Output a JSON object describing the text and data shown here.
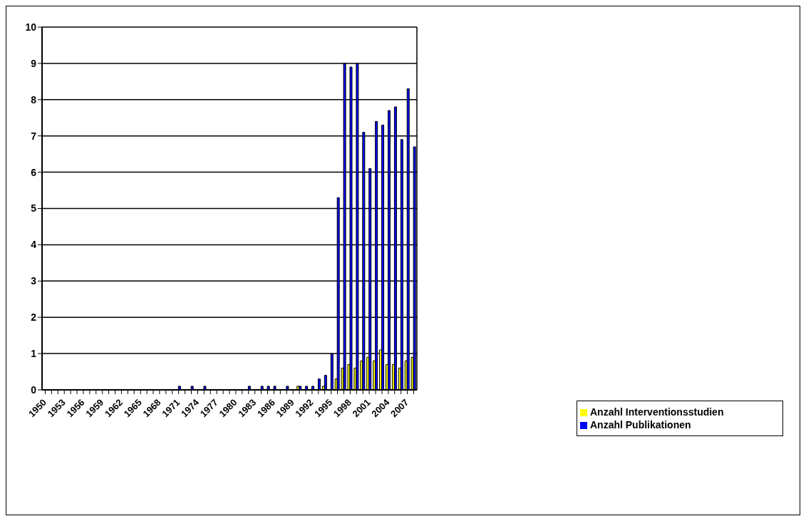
{
  "chart_data": {
    "type": "bar",
    "categories": [
      "1950",
      null,
      null,
      "1953",
      null,
      null,
      "1956",
      null,
      null,
      "1959",
      null,
      null,
      "1962",
      null,
      null,
      "1965",
      null,
      null,
      "1968",
      null,
      null,
      "1971",
      null,
      null,
      "1974",
      null,
      null,
      "1977",
      null,
      null,
      "1980",
      null,
      null,
      "1983",
      null,
      null,
      "1986",
      null,
      null,
      "1989",
      null,
      null,
      "1992",
      null,
      null,
      "1995",
      null,
      null,
      "1998",
      null,
      null,
      "2001",
      null,
      null,
      "2004",
      null,
      null,
      "2007",
      null
    ],
    "series": [
      {
        "name": "Anzahl Interventionsstudien",
        "color": "#ffff00",
        "values": [
          0,
          0,
          0,
          0,
          0,
          0,
          0,
          0,
          0,
          0,
          0,
          0,
          0,
          0,
          0,
          0,
          0,
          0,
          0,
          0,
          0,
          0,
          0,
          0,
          0,
          0,
          0,
          0,
          0,
          0,
          0,
          0,
          0,
          0,
          0,
          0,
          0,
          0,
          0,
          0,
          0.1,
          0,
          0,
          0,
          0.1,
          0,
          0.3,
          0.6,
          0.7,
          0.6,
          0.8,
          0.9,
          0.8,
          1.1,
          0.7,
          0.7,
          0.6,
          0.8,
          0.9
        ]
      },
      {
        "name": "Anzahl Publikationen",
        "color": "#0000ff",
        "values": [
          0,
          0,
          0,
          0,
          0,
          0,
          0,
          0,
          0,
          0,
          0,
          0,
          0,
          0,
          0,
          0,
          0,
          0,
          0,
          0,
          0,
          0.1,
          0,
          0.1,
          0,
          0.1,
          0,
          0,
          0,
          0,
          0,
          0,
          0.1,
          0,
          0.1,
          0.1,
          0.1,
          0,
          0.1,
          0,
          0.1,
          0.1,
          0.1,
          0.3,
          0.4,
          1.0,
          5.3,
          9.0,
          8.9,
          9.0,
          7.1,
          6.1,
          7.4,
          7.3,
          7.7,
          7.8,
          6.9,
          8.3,
          6.7
        ]
      }
    ],
    "ylim": [
      0,
      10
    ],
    "yticks": [
      0,
      1,
      2,
      3,
      4,
      5,
      6,
      7,
      8,
      9,
      10
    ],
    "grid": "y",
    "legend": "bottom right"
  }
}
